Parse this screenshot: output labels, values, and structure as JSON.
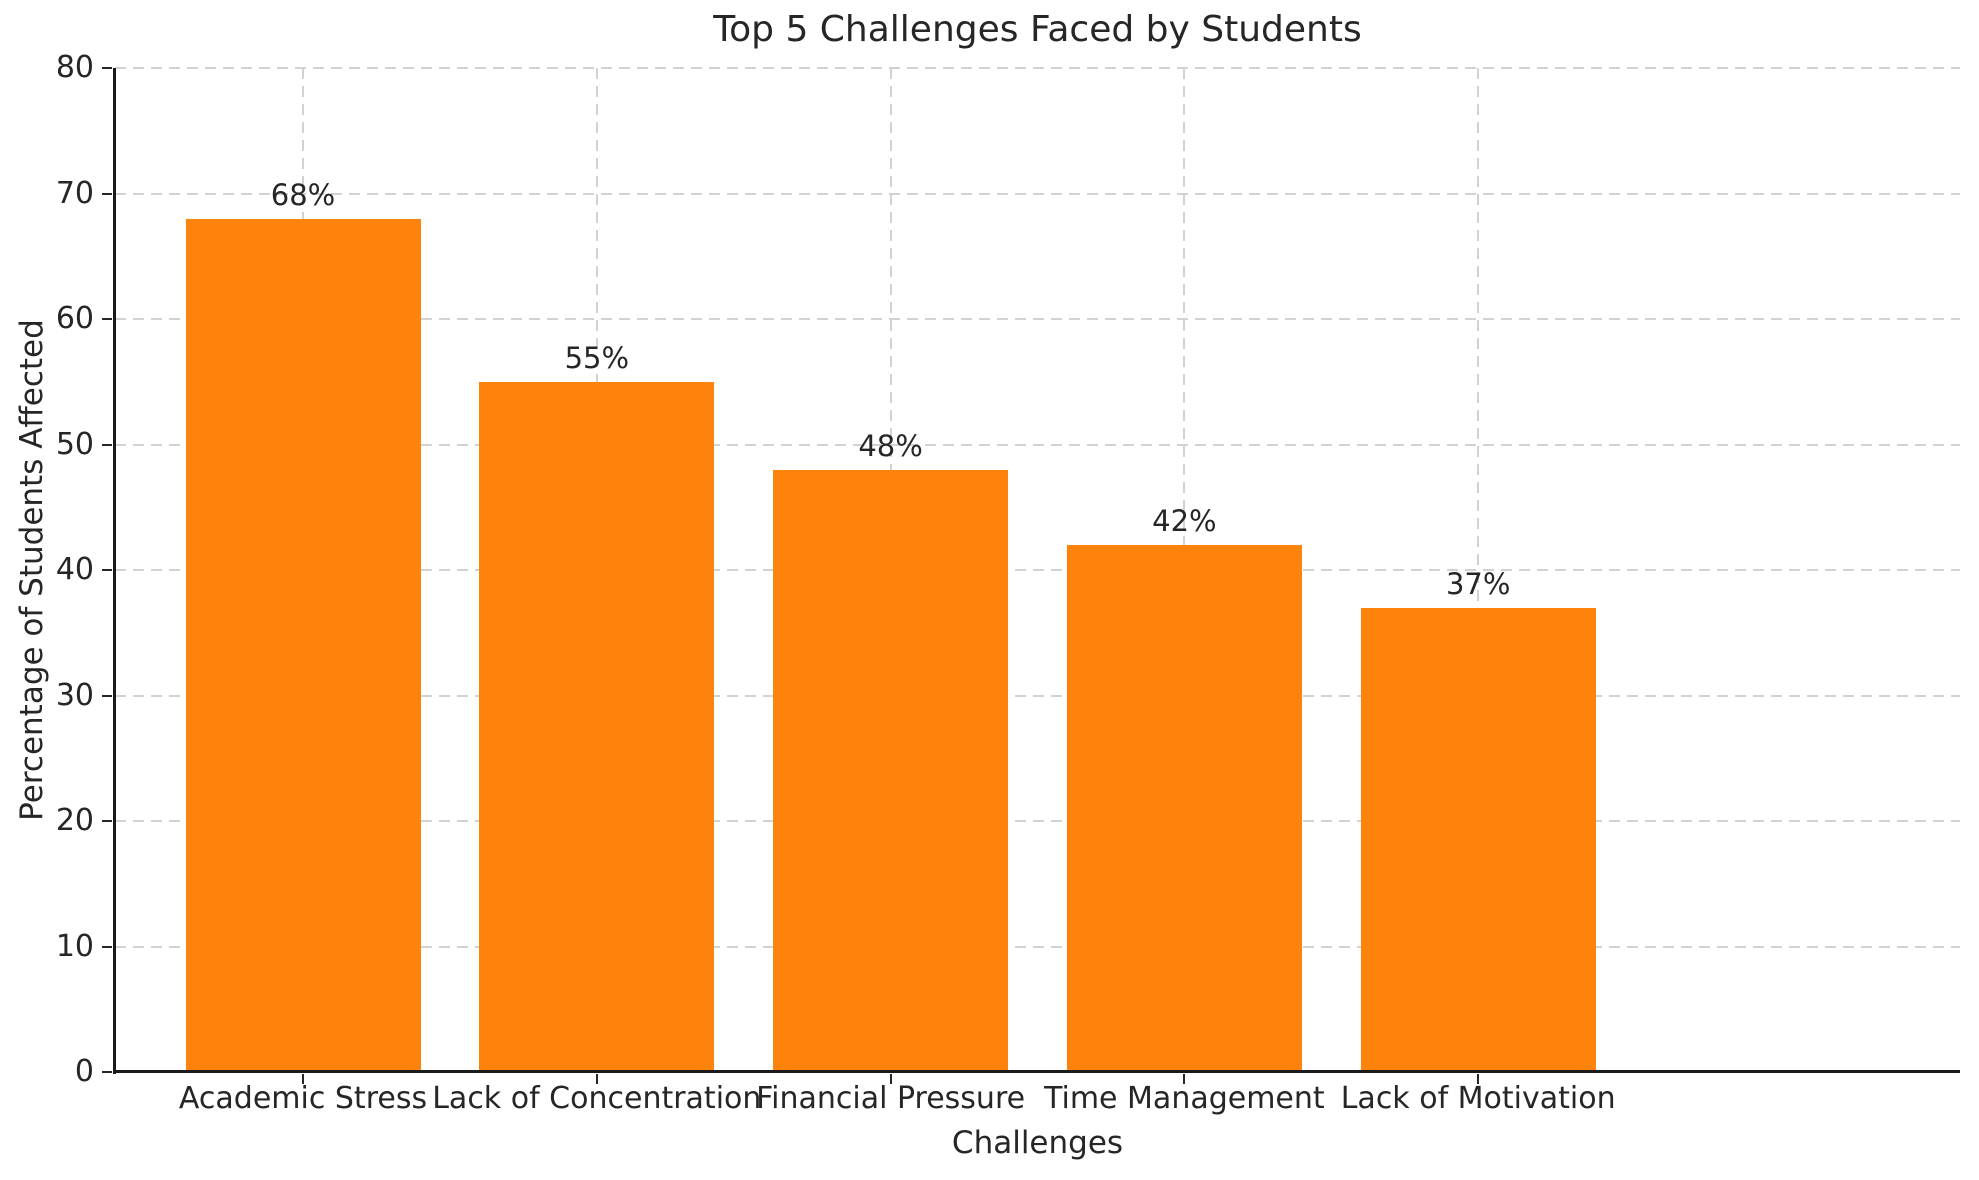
{
  "chart_data": {
    "type": "bar",
    "title": "Top 5 Challenges Faced by Students",
    "xlabel": "Challenges",
    "ylabel": "Percentage of Students Affected",
    "categories": [
      "Academic Stress",
      "Lack of Concentration",
      "Financial Pressure",
      "Time Management",
      "Lack of Motivation"
    ],
    "values": [
      68,
      55,
      48,
      42,
      37
    ],
    "bar_labels": [
      "68%",
      "55%",
      "48%",
      "42%",
      "37%"
    ],
    "ylim": [
      0,
      80
    ],
    "yticks": [
      0,
      10,
      20,
      30,
      40,
      50,
      60,
      70,
      80
    ],
    "grid": "dashed, horizontal and vertical",
    "legend": "none",
    "colors": {
      "bar": "#fd830d",
      "grid": "#d2d2d2",
      "spine": "#1a1a1a",
      "tick": "#262626",
      "text": "#262626",
      "background": "#ffffff"
    }
  }
}
